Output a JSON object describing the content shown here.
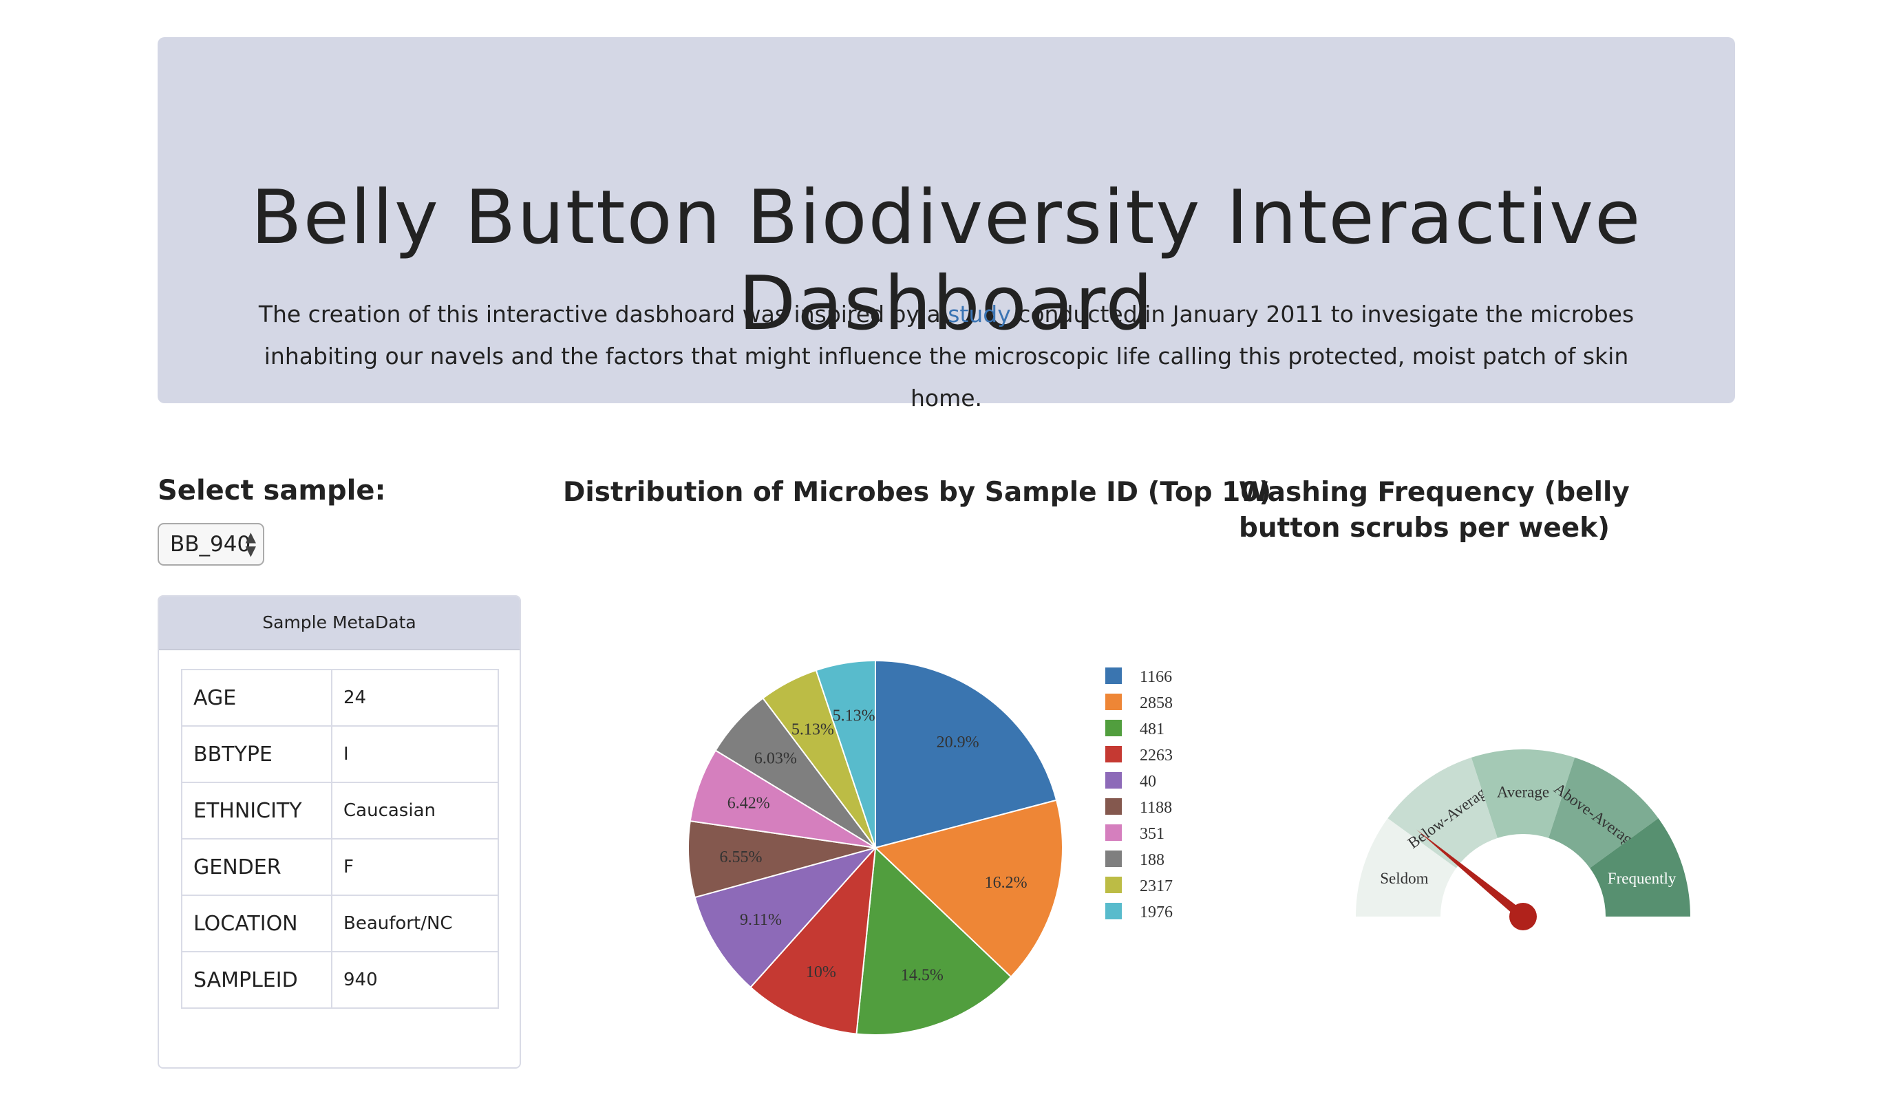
{
  "header": {
    "title": "Belly Button Biodiversity Interactive Dashboard",
    "intro_before": "The creation of this interactive dasbhoard was inspired by a ",
    "intro_link": "study",
    "intro_after": " conducted in January 2011 to invesigate the microbes inhabiting our navels and the factors that might influence the microscopic life calling this protected, moist patch of skin home."
  },
  "selector": {
    "label": "Select sample:",
    "value": "BB_940"
  },
  "metadata": {
    "title": "Sample MetaData",
    "rows": [
      {
        "key": "AGE",
        "value": "24"
      },
      {
        "key": "BBTYPE",
        "value": "I"
      },
      {
        "key": "ETHNICITY",
        "value": "Caucasian"
      },
      {
        "key": "GENDER",
        "value": "F"
      },
      {
        "key": "LOCATION",
        "value": "Beaufort/NC"
      },
      {
        "key": "SAMPLEID",
        "value": "940"
      }
    ]
  },
  "pie": {
    "title": "Distribution of Microbes by Sample ID (Top 10)"
  },
  "gauge": {
    "title": "Washing Frequency (belly button scrubs per week)"
  },
  "chart_data": [
    {
      "type": "pie",
      "title": "Distribution of Microbes by Sample ID (Top 10)",
      "legend_position": "right",
      "categories": [
        "1166",
        "2858",
        "481",
        "2263",
        "40",
        "1188",
        "351",
        "188",
        "2317",
        "1976"
      ],
      "values": [
        20.9,
        16.2,
        14.5,
        10,
        9.11,
        6.55,
        6.42,
        6.03,
        5.13,
        5.13
      ],
      "labels": [
        "20.9%",
        "16.2%",
        "14.5%",
        "10%",
        "9.11%",
        "6.55%",
        "6.42%",
        "6.03%",
        "5.13%",
        "5.13%"
      ],
      "colors": [
        "#3a75b0",
        "#ee8636",
        "#519e3e",
        "#c53932",
        "#8d6ab8",
        "#84584e",
        "#d57fbe",
        "#7f7f7f",
        "#bcbc45",
        "#58bbcc"
      ]
    },
    {
      "type": "gauge",
      "title": "Washing Frequency (belly button scrubs per week)",
      "bands": [
        "Seldom",
        "Below-Average",
        "Average",
        "Above-Average",
        "Frequently"
      ],
      "band_colors": [
        "#ecf2ee",
        "#c8ddd2",
        "#a4c9b5",
        "#7dac93",
        "#579070"
      ],
      "value": 1,
      "range": [
        0,
        5
      ],
      "needle_color": "#b0221b"
    }
  ]
}
